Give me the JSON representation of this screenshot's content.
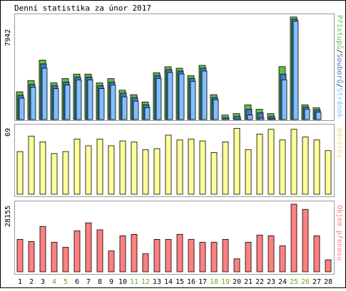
{
  "title": "Denní statistika za únor 2017",
  "colors": {
    "frame": "#000000",
    "panel_border": "#9a9a9a",
    "access": "#66bb44",
    "files": "#4477cc",
    "pages": "#80c0ff",
    "visitors": "#ffff99",
    "traffic": "#ff8080",
    "weekend_label": "#66aa22",
    "legend_access": "#66bb44",
    "legend_files": "#4a6fbf",
    "legend_pages": "#80c0ff",
    "legend_visitors": "#e6e680",
    "legend_traffic": "#ff8080"
  },
  "chart_data": [
    {
      "type": "bar",
      "name": "hits-panel",
      "ymax_label": "7942",
      "ylim": [
        0,
        7942
      ],
      "legend": [
        "Přístupů",
        "/",
        "Souborů",
        "/",
        "Stránek"
      ],
      "categories": [
        "1",
        "2",
        "3",
        "4",
        "5",
        "6",
        "7",
        "8",
        "9",
        "10",
        "11",
        "12",
        "13",
        "14",
        "15",
        "16",
        "17",
        "18",
        "19",
        "20",
        "21",
        "22",
        "23",
        "24",
        "25",
        "26",
        "27",
        "28"
      ],
      "weekend_days": [
        "4",
        "5",
        "11",
        "12",
        "18",
        "19",
        "25",
        "26"
      ],
      "series": [
        {
          "name": "Přístupů",
          "values": [
            2120,
            2980,
            4540,
            2800,
            3130,
            3470,
            3470,
            2800,
            3130,
            2240,
            1900,
            1340,
            3580,
            4030,
            3920,
            3360,
            4140,
            1900,
            340,
            450,
            1120,
            780,
            450,
            4040,
            7840,
            1120,
            900,
            0
          ]
        },
        {
          "name": "Souborů",
          "values": [
            1960,
            2800,
            4360,
            2690,
            2970,
            3360,
            3360,
            2690,
            2970,
            2130,
            1790,
            1230,
            3470,
            3920,
            3810,
            3250,
            4030,
            1790,
            230,
            340,
            900,
            620,
            340,
            3580,
            7780,
            1060,
            840,
            0
          ]
        },
        {
          "name": "Stránek",
          "values": [
            1850,
            2690,
            4140,
            2580,
            2860,
            3250,
            3250,
            2580,
            2860,
            1960,
            1620,
            1120,
            3360,
            3810,
            3700,
            3140,
            3920,
            1740,
            170,
            230,
            560,
            340,
            280,
            3250,
            7730,
            1010,
            780,
            0
          ]
        }
      ]
    },
    {
      "type": "bar",
      "name": "visitors-panel",
      "ymax_label": "69",
      "ylim": [
        0,
        69
      ],
      "legend": [
        "Návštěv"
      ],
      "categories": [
        "1",
        "2",
        "3",
        "4",
        "5",
        "6",
        "7",
        "8",
        "9",
        "10",
        "11",
        "12",
        "13",
        "14",
        "15",
        "16",
        "17",
        "18",
        "19",
        "20",
        "21",
        "22",
        "23",
        "24",
        "25",
        "26",
        "27",
        "28"
      ],
      "series": [
        {
          "name": "Návštěv",
          "values": [
            44,
            60,
            54,
            42,
            44,
            57,
            50,
            57,
            50,
            55,
            54,
            46,
            47,
            61,
            56,
            57,
            55,
            43,
            54,
            68,
            46,
            62,
            67,
            56,
            67,
            59,
            56,
            45
          ]
        }
      ]
    },
    {
      "type": "bar",
      "name": "traffic-panel",
      "ymax_label": "28155",
      "ylim": [
        0,
        28155
      ],
      "legend": [
        "Objem přenosu"
      ],
      "categories": [
        "1",
        "2",
        "3",
        "4",
        "5",
        "6",
        "7",
        "8",
        "9",
        "10",
        "11",
        "12",
        "13",
        "14",
        "15",
        "16",
        "17",
        "18",
        "19",
        "20",
        "21",
        "22",
        "23",
        "24",
        "25",
        "26",
        "27",
        "28"
      ],
      "series": [
        {
          "name": "Objem přenosu",
          "values": [
            13500,
            12600,
            18900,
            12300,
            10200,
            17100,
            20400,
            17500,
            8700,
            15000,
            15600,
            7500,
            13500,
            13500,
            15600,
            13500,
            12300,
            12300,
            13500,
            5400,
            12300,
            15300,
            15000,
            10800,
            28155,
            26000,
            15000,
            5000
          ]
        }
      ]
    }
  ]
}
